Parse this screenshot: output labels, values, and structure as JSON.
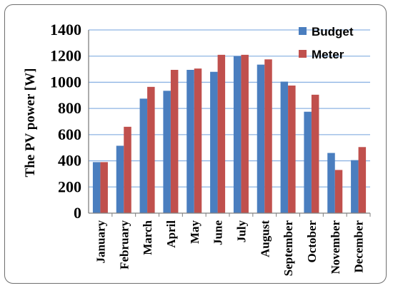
{
  "chart_data": {
    "type": "bar",
    "ylabel": "The PV power [W]",
    "ylim": [
      0,
      1400
    ],
    "yticks": [
      0,
      200,
      400,
      600,
      800,
      1000,
      1200,
      1400
    ],
    "grid": true,
    "legend_position": "top-right",
    "categories": [
      "January",
      "February",
      "March",
      "April",
      "May",
      "June",
      "July",
      "August",
      "September",
      "October",
      "November",
      "December"
    ],
    "series": [
      {
        "name": "Budget",
        "color": "#4a7ebf",
        "values": [
          390,
          515,
          875,
          935,
          1095,
          1080,
          1200,
          1135,
          1005,
          775,
          460,
          405
        ]
      },
      {
        "name": "Meter",
        "color": "#c0504d",
        "values": [
          390,
          660,
          965,
          1095,
          1105,
          1210,
          1210,
          1175,
          975,
          905,
          330,
          505
        ]
      }
    ]
  }
}
